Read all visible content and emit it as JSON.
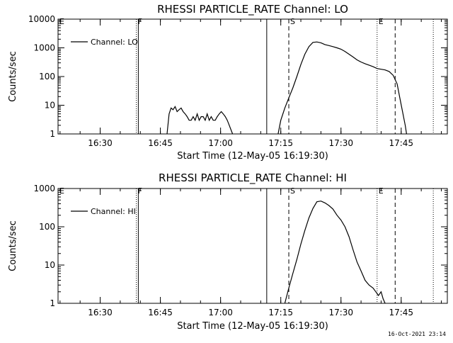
{
  "footer": {
    "timestamp": "16-Oct-2021 23:14"
  },
  "chart_data": [
    {
      "type": "line",
      "title": "RHESSI PARTICLE_RATE Channel: LO",
      "xlabel": "Start Time (12-May-05 16:19:30)",
      "ylabel": "Counts/sec",
      "yscale": "log",
      "xlim": [
        "16:19:30",
        "17:56:30"
      ],
      "ylim": [
        1,
        10000
      ],
      "x_ticks": [
        "16:30",
        "16:45",
        "17:00",
        "17:15",
        "17:30",
        "17:45"
      ],
      "y_ticks": [
        "1",
        "10",
        "100",
        "1000",
        "10000"
      ],
      "legend": {
        "placement": "top-left",
        "entries": [
          "Channel: LO"
        ]
      },
      "markers": [
        {
          "time": "16:19:30",
          "label": "E",
          "style": "dotted"
        },
        {
          "time": "16:39:00",
          "label": "F",
          "style": "dotted"
        },
        {
          "time": "16:39:30",
          "label": "",
          "style": "solid"
        },
        {
          "time": "17:11:30",
          "label": "",
          "style": "solid"
        },
        {
          "time": "17:17:00",
          "label": "S",
          "style": "dashed"
        },
        {
          "time": "17:39:00",
          "label": "E",
          "style": "dotted"
        },
        {
          "time": "17:43:30",
          "label": "",
          "style": "dashed"
        },
        {
          "time": "17:53:00",
          "label": "",
          "style": "dotted"
        }
      ],
      "series": [
        {
          "name": "Channel: LO",
          "segments": [
            {
              "x": [
                "16:46:40",
                "16:47:10",
                "16:47:40",
                "16:48:10",
                "16:48:40",
                "16:49:10",
                "16:49:40",
                "16:50:10",
                "16:50:40",
                "16:51:10",
                "16:51:40",
                "16:52:10",
                "16:52:40",
                "16:53:10",
                "16:53:40",
                "16:54:10",
                "16:54:40",
                "16:55:10",
                "16:55:40",
                "16:56:10",
                "16:56:40",
                "16:57:10",
                "16:57:40",
                "16:58:10",
                "16:58:40",
                "16:59:10",
                "16:59:40",
                "17:00:10",
                "17:00:40",
                "17:01:10",
                "17:01:40",
                "17:02:10",
                "17:02:40",
                "17:03:00"
              ],
              "y": [
                1,
                5,
                8,
                7,
                9,
                6,
                7,
                8,
                6,
                5,
                4,
                3,
                3,
                4,
                3,
                5,
                3,
                4,
                4,
                3,
                5,
                3,
                4,
                3,
                3,
                4,
                5,
                6,
                5,
                4,
                3,
                2,
                1.3,
                1
              ]
            },
            {
              "x": [
                "17:14:20",
                "17:15:00",
                "17:16:00",
                "17:17:00",
                "17:18:00",
                "17:19:00",
                "17:20:00",
                "17:21:00",
                "17:22:00",
                "17:23:00",
                "17:24:00",
                "17:25:00",
                "17:26:00",
                "17:27:00",
                "17:28:00",
                "17:29:00",
                "17:30:00",
                "17:31:00",
                "17:32:00",
                "17:33:00",
                "17:34:00",
                "17:35:00",
                "17:36:00",
                "17:37:00",
                "17:38:00",
                "17:39:00",
                "17:40:00",
                "17:41:00",
                "17:42:00",
                "17:43:00",
                "17:44:00",
                "17:44:40",
                "17:45:20",
                "17:46:00",
                "17:46:20"
              ],
              "y": [
                1,
                3,
                8,
                18,
                40,
                100,
                260,
                600,
                1100,
                1550,
                1600,
                1500,
                1300,
                1200,
                1100,
                1000,
                900,
                750,
                600,
                480,
                380,
                320,
                280,
                250,
                220,
                190,
                180,
                170,
                150,
                110,
                55,
                18,
                6,
                2,
                1
              ]
            }
          ]
        }
      ]
    },
    {
      "type": "line",
      "title": "RHESSI PARTICLE_RATE Channel: HI",
      "xlabel": "Start Time (12-May-05 16:19:30)",
      "ylabel": "Counts/sec",
      "yscale": "log",
      "xlim": [
        "16:19:30",
        "17:56:30"
      ],
      "ylim": [
        1,
        1000
      ],
      "x_ticks": [
        "16:30",
        "16:45",
        "17:00",
        "17:15",
        "17:30",
        "17:45"
      ],
      "y_ticks": [
        "1",
        "10",
        "100",
        "1000"
      ],
      "legend": {
        "placement": "top-left",
        "entries": [
          "Channel: HI"
        ]
      },
      "markers": [
        {
          "time": "16:19:30",
          "label": "E",
          "style": "dotted"
        },
        {
          "time": "16:39:00",
          "label": "F",
          "style": "dotted"
        },
        {
          "time": "16:39:30",
          "label": "",
          "style": "solid"
        },
        {
          "time": "17:11:30",
          "label": "",
          "style": "solid"
        },
        {
          "time": "17:17:00",
          "label": "S",
          "style": "dashed"
        },
        {
          "time": "17:39:00",
          "label": "E",
          "style": "dotted"
        },
        {
          "time": "17:43:30",
          "label": "",
          "style": "dashed"
        },
        {
          "time": "17:53:00",
          "label": "",
          "style": "dotted"
        }
      ],
      "series": [
        {
          "name": "Channel: HI",
          "segments": [
            {
              "x": [
                "17:16:00",
                "17:17:00",
                "17:18:00",
                "17:19:00",
                "17:20:00",
                "17:21:00",
                "17:22:00",
                "17:23:00",
                "17:24:00",
                "17:25:00",
                "17:26:00",
                "17:27:00",
                "17:28:00",
                "17:29:00",
                "17:30:00",
                "17:31:00",
                "17:32:00",
                "17:33:00",
                "17:34:00",
                "17:35:00",
                "17:36:00",
                "17:37:00",
                "17:38:00",
                "17:38:40",
                "17:39:20",
                "17:40:00",
                "17:40:30",
                "17:41:00"
              ],
              "y": [
                1,
                2.5,
                6,
                14,
                35,
                80,
                170,
                300,
                450,
                470,
                420,
                360,
                290,
                200,
                150,
                100,
                55,
                25,
                12,
                7,
                4,
                3,
                2.5,
                2,
                1.6,
                2,
                1.3,
                1
              ]
            }
          ]
        }
      ]
    }
  ]
}
